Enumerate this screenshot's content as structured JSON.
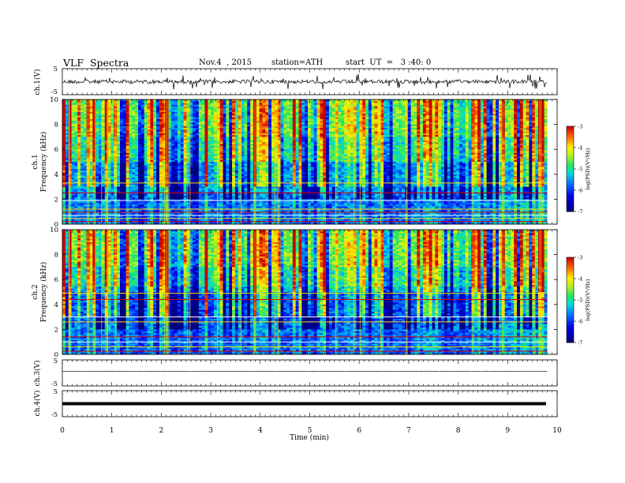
{
  "header": {
    "title": "VLF  Spectra",
    "date": "Nov.4  , 2015",
    "station": "station=ATH",
    "start": "start  UT  =   3 :40: 0"
  },
  "chart_data": [
    {
      "type": "line",
      "ylabel": "ch.1(V)",
      "ylim": [
        -5,
        5
      ],
      "ytick_labels": [
        "5",
        "-5"
      ],
      "description_values": {
        "baseline": 0.0,
        "noise_amplitude": 0.8,
        "spike_amplitude": 2.5
      }
    },
    {
      "type": "heatmap",
      "ylabel_line1": "ch.1",
      "ylabel_line2": "Frequency  (kHz)",
      "y_ticks": [
        0,
        2,
        4,
        6,
        8,
        10
      ],
      "ylim": [
        0,
        10
      ],
      "colorbar": {
        "label": "log(PSD)(V²/Hz)",
        "ticks": [
          "-3",
          "-4",
          "-5",
          "-6",
          "-7"
        ],
        "range": [
          -7,
          -3
        ]
      }
    },
    {
      "type": "heatmap",
      "ylabel_line1": "ch.2",
      "ylabel_line2": "Frequency  (kHz)",
      "y_ticks": [
        0,
        2,
        4,
        6,
        8,
        10
      ],
      "ylim": [
        0,
        10
      ],
      "colorbar": {
        "label": "log(PSD)(V²/Hz)",
        "ticks": [
          "-3",
          "-4",
          "-5",
          "-6",
          "-7"
        ],
        "range": [
          -7,
          -3
        ]
      }
    },
    {
      "type": "line",
      "ylabel": "ch.3(V)",
      "ylim": [
        -5,
        5
      ],
      "ytick_labels": [
        "5",
        "-5"
      ],
      "description_values": {
        "baseline": 0.0
      }
    },
    {
      "type": "line",
      "ylabel": "ch.4(V)",
      "ylim": [
        -5,
        5
      ],
      "ytick_labels": [
        "5",
        "-5"
      ],
      "description_values": {
        "baseline": 0.0
      }
    }
  ],
  "xaxis": {
    "label": "Time  (min)",
    "ticks": [
      0,
      1,
      2,
      3,
      4,
      5,
      6,
      7,
      8,
      9,
      10
    ],
    "data_end_min": 9.8
  }
}
